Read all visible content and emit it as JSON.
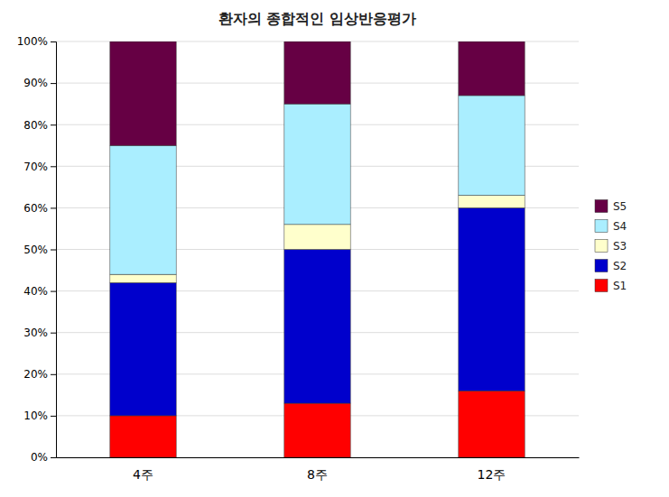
{
  "chart_data": {
    "type": "bar",
    "stacked": true,
    "title": "환자의 종합적인 임상반응평가",
    "categories": [
      "4주",
      "8주",
      "12주"
    ],
    "series": [
      {
        "name": "S1",
        "color": "#FF0000",
        "values": [
          10,
          13,
          16
        ]
      },
      {
        "name": "S2",
        "color": "#0000CC",
        "values": [
          32,
          37,
          44
        ]
      },
      {
        "name": "S3",
        "color": "#FFFFCC",
        "values": [
          2,
          6,
          3
        ]
      },
      {
        "name": "S4",
        "color": "#AAEEFF",
        "values": [
          31,
          29,
          24
        ]
      },
      {
        "name": "S5",
        "color": "#660044",
        "values": [
          25,
          15,
          13
        ]
      }
    ],
    "ylim": [
      0,
      100
    ],
    "yticks": [
      {
        "value": 0,
        "label": "0%"
      },
      {
        "value": 10,
        "label": "10%"
      },
      {
        "value": 20,
        "label": "20%"
      },
      {
        "value": 30,
        "label": "30%"
      },
      {
        "value": 40,
        "label": "40%"
      },
      {
        "value": 50,
        "label": "50%"
      },
      {
        "value": 60,
        "label": "60%"
      },
      {
        "value": 70,
        "label": "70%"
      },
      {
        "value": 80,
        "label": "80%"
      },
      {
        "value": 90,
        "label": "90%"
      },
      {
        "value": 100,
        "label": "100%"
      }
    ],
    "grid": true,
    "legend": "right"
  }
}
